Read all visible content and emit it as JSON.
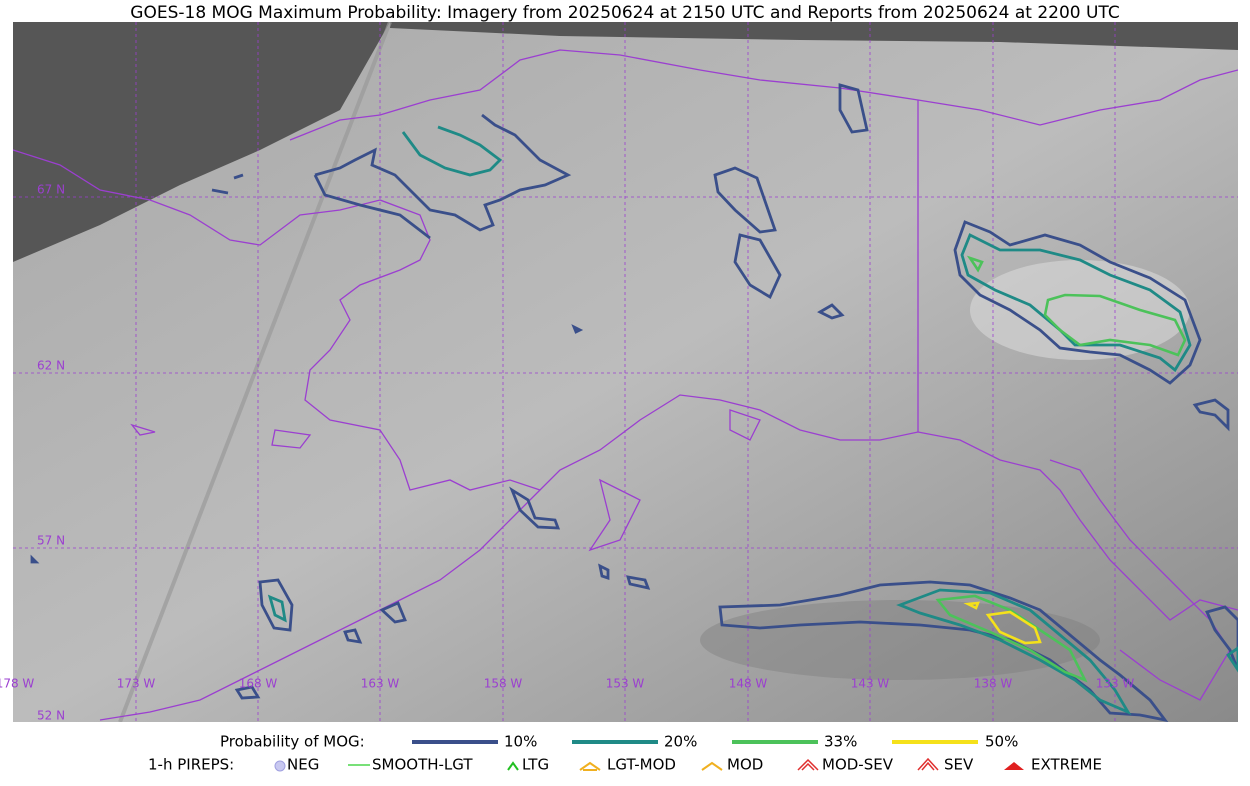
{
  "title": "GOES-18 MOG Maximum Probability: Imagery from 20250624 at 2150 UTC and Reports from 20250624 at 2200 UTC",
  "latitude_labels": [
    "67 N",
    "62 N",
    "57 N",
    "52 N"
  ],
  "longitude_labels": [
    "178 W",
    "173 W",
    "168 W",
    "163 W",
    "158 W",
    "153 W",
    "148 W",
    "143 W",
    "138 W",
    "133 W"
  ],
  "probability_legend": {
    "label": "Probability of MOG:",
    "items": [
      "10%",
      "20%",
      "33%",
      "50%"
    ]
  },
  "pirep_legend": {
    "label": "1-h PIREPS:",
    "items": [
      "NEG",
      "SMOOTH-LGT",
      "LTG",
      "LGT-MOD",
      "MOD",
      "MOD-SEV",
      "SEV",
      "EXTREME"
    ]
  }
}
